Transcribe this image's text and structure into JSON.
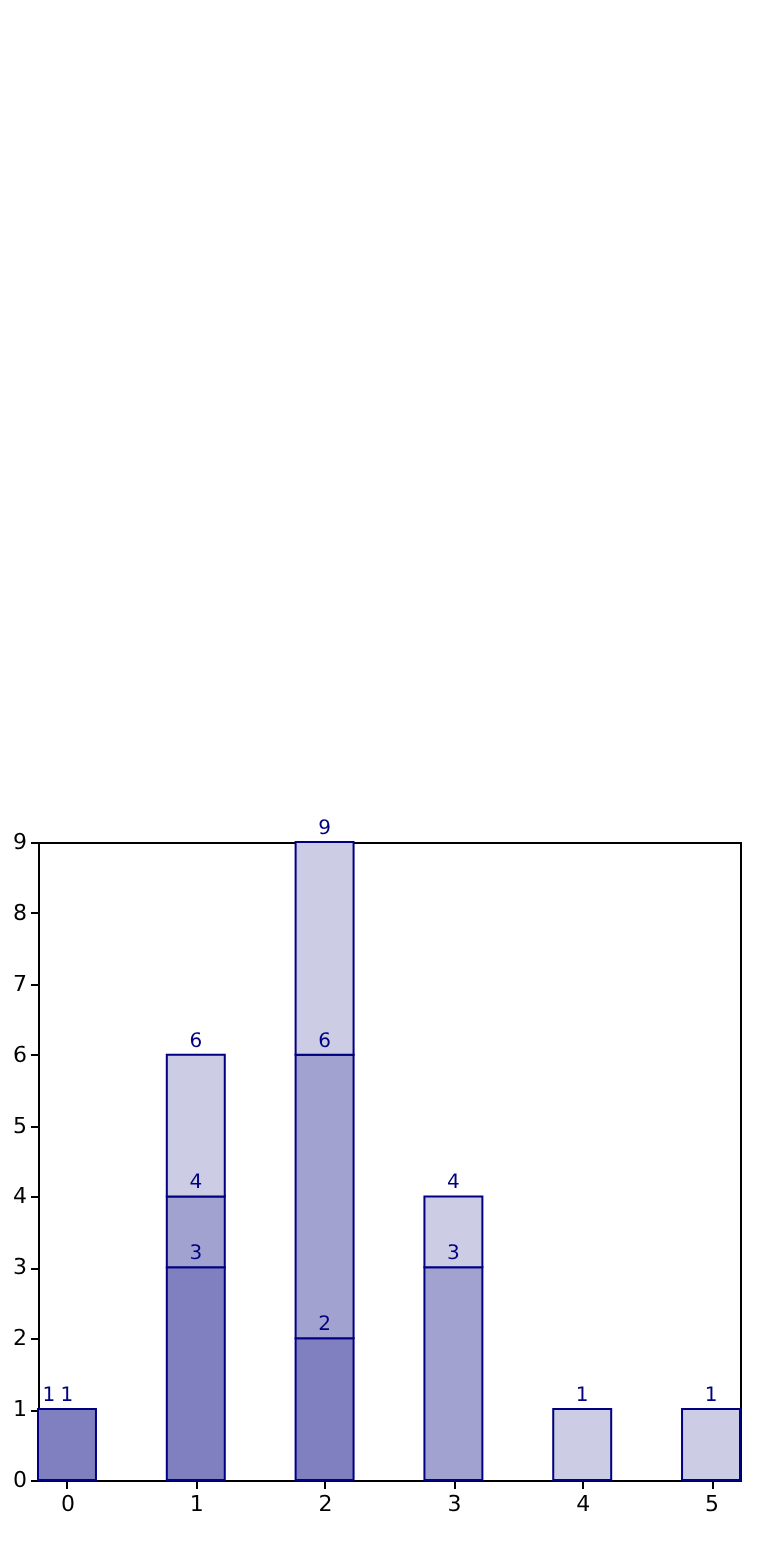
{
  "chart_data": {
    "type": "bar",
    "stacked": true,
    "x": [
      0,
      1,
      2,
      3,
      4,
      5
    ],
    "xlim": [
      -0.225,
      5.225
    ],
    "xticks": [
      0,
      1,
      2,
      3,
      4,
      5
    ],
    "ylim": [
      0,
      9
    ],
    "yticks": [
      0,
      1,
      2,
      3,
      4,
      5,
      6,
      7,
      8,
      9
    ],
    "grid": false,
    "legend": false,
    "series": [
      {
        "color": "#8080c0",
        "values": [
          1,
          3,
          2,
          0,
          0,
          0
        ]
      },
      {
        "color": "#a2a2d0",
        "values": [
          0,
          1,
          4,
          3,
          0,
          0
        ]
      },
      {
        "color": "#ccccE4",
        "values": [
          0,
          2,
          3,
          1,
          1,
          1
        ]
      }
    ],
    "totals": [
      "1",
      "6",
      "9",
      "4",
      "1",
      "1"
    ],
    "annotations": [
      {
        "text": "1",
        "x": 0,
        "y": 1
      },
      {
        "text": "3",
        "x": 1,
        "y": 3
      },
      {
        "text": "4",
        "x": 1,
        "y": 4
      },
      {
        "text": "2",
        "x": 2,
        "y": 2
      },
      {
        "text": "6",
        "x": 2,
        "y": 6
      },
      {
        "text": "3",
        "x": 3,
        "y": 3
      }
    ]
  }
}
